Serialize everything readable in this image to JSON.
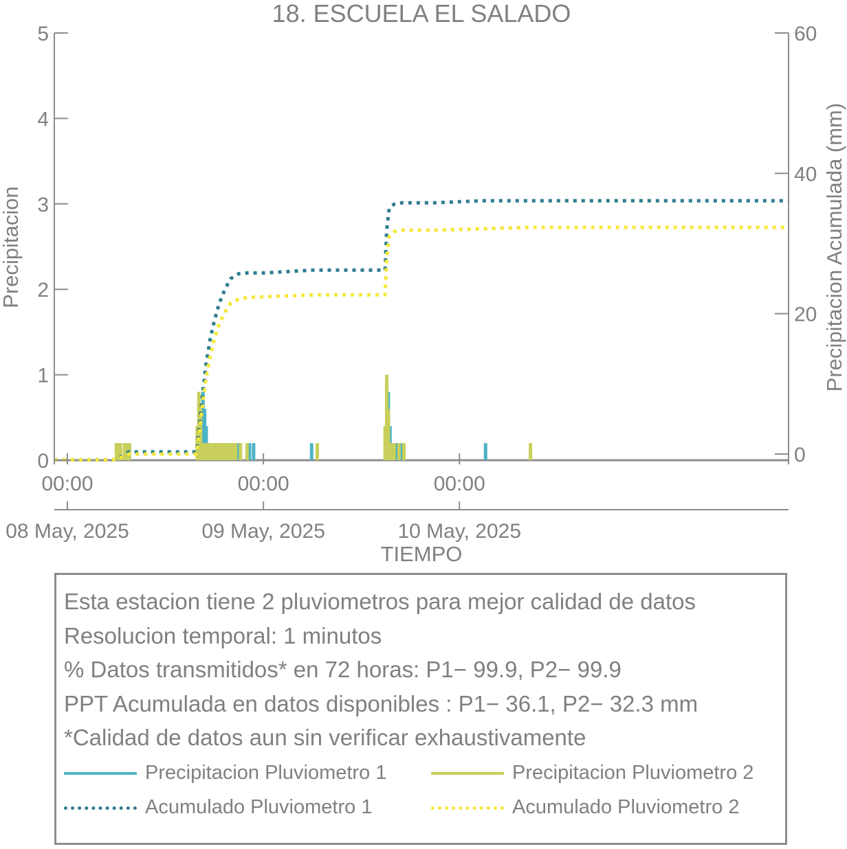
{
  "chart_data": {
    "type": "line",
    "title": "18. ESCUELA EL SALADO",
    "xlabel": "TIEMPO",
    "ylabel_left": "Precipitacion",
    "ylabel_right": "Precipitacion Acumulada (mm)",
    "ylim_left": [
      0,
      5
    ],
    "ylim_right": [
      0,
      60
    ],
    "yticks_left": [
      "0",
      "1",
      "2",
      "3",
      "4",
      "5"
    ],
    "yticks_right": [
      "0",
      "20",
      "40",
      "60"
    ],
    "x_range_hours": [
      -1.6,
      88.3
    ],
    "x_ticks": [
      {
        "time": "00:00",
        "date": "08 May, 2025",
        "hour": 0
      },
      {
        "time": "00:00",
        "date": "09 May, 2025",
        "hour": 24
      },
      {
        "time": "00:00",
        "date": "10 May, 2025",
        "hour": 48
      }
    ],
    "grid": false,
    "series": [
      {
        "name": "Precipitacion Pluviometro 1",
        "axis": "left",
        "style": "bars",
        "color": "#4db3c6",
        "x": [
          6.2,
          6.4,
          7.3,
          7.6,
          16.2,
          16.4,
          16.6,
          16.8,
          17.0,
          17.3,
          17.6,
          18.0,
          18.3,
          18.6,
          19.0,
          19.3,
          19.6,
          20.0,
          20.3,
          21.0,
          22.3,
          22.8,
          29.9,
          39.1,
          39.3,
          39.5,
          39.9,
          40.4,
          41.0,
          51.2
        ],
        "values": [
          0.2,
          0.2,
          0.2,
          0.2,
          0.4,
          0.6,
          0.8,
          0.6,
          0.4,
          0.2,
          0.2,
          0.2,
          0.2,
          0.2,
          0.2,
          0.2,
          0.2,
          0.2,
          0.2,
          0.2,
          0.2,
          0.2,
          0.2,
          0.6,
          0.8,
          0.4,
          0.2,
          0.2,
          0.2,
          0.2
        ]
      },
      {
        "name": "Precipitacion Pluviometro 2",
        "axis": "left",
        "style": "bars",
        "color": "#c8cf5a",
        "x": [
          6.0,
          6.2,
          6.5,
          7.0,
          7.3,
          7.6,
          15.9,
          16.1,
          16.3,
          16.6,
          16.9,
          17.2,
          17.5,
          17.8,
          18.1,
          18.4,
          18.7,
          19.0,
          19.3,
          19.6,
          19.9,
          20.3,
          20.6,
          21.2,
          22.0,
          30.6,
          38.9,
          39.1,
          39.3,
          39.6,
          40.0,
          40.6,
          41.2,
          56.7
        ],
        "values": [
          0.2,
          0.2,
          0.2,
          0.2,
          0.2,
          0.2,
          0.4,
          0.8,
          0.6,
          0.2,
          0.2,
          0.2,
          0.2,
          0.2,
          0.2,
          0.2,
          0.2,
          0.2,
          0.2,
          0.2,
          0.2,
          0.2,
          0.2,
          0.2,
          0.2,
          0.2,
          0.4,
          1.0,
          0.6,
          0.2,
          0.2,
          0.2,
          0.2,
          0.2
        ]
      },
      {
        "name": "Acumulado Pluviometro 1",
        "axis": "right",
        "style": "dotted",
        "color": "#2e7d8f",
        "x": [
          -1.6,
          6.0,
          7.5,
          15.8,
          16.2,
          16.6,
          17.0,
          17.5,
          18.0,
          18.6,
          19.3,
          20.0,
          21.0,
          22.0,
          24.0,
          30.0,
          38.9,
          39.1,
          39.4,
          40.0,
          41.0,
          45.0,
          51.0,
          88.3
        ],
        "values": [
          -0.8,
          -0.8,
          0.3,
          0.3,
          4.5,
          9.0,
          13.0,
          16.5,
          19.0,
          21.5,
          23.5,
          25.0,
          25.7,
          25.8,
          25.8,
          26.2,
          26.2,
          32.0,
          35.0,
          35.6,
          35.8,
          35.8,
          36.1,
          36.1
        ]
      },
      {
        "name": "Acumulado Pluviometro 2",
        "axis": "right",
        "style": "dotted",
        "color": "#f5e839",
        "x": [
          -1.6,
          6.0,
          7.5,
          15.8,
          16.2,
          16.6,
          17.0,
          17.5,
          18.0,
          18.6,
          19.3,
          20.0,
          21.0,
          22.0,
          24.0,
          30.5,
          38.9,
          39.1,
          39.4,
          40.0,
          41.0,
          45.0,
          56.7,
          88.3
        ],
        "values": [
          -0.8,
          -0.8,
          0.0,
          0.0,
          3.5,
          7.5,
          11.0,
          14.0,
          16.5,
          18.6,
          20.2,
          21.5,
          22.1,
          22.3,
          22.4,
          22.7,
          22.7,
          28.0,
          31.0,
          31.7,
          31.9,
          31.9,
          32.3,
          32.3
        ]
      }
    ]
  },
  "notes": [
    "Esta estacion tiene 2 pluviometros para mejor calidad de datos",
    "Resolucion temporal: 1 minutos",
    "% Datos transmitidos* en 72 horas: P1− 99.9, P2− 99.9",
    "PPT Acumulada en datos disponibles : P1− 36.1, P2− 32.3 mm",
    "*Calidad de datos aun sin verificar exhaustivamente"
  ],
  "legend": [
    {
      "label": "Precipitacion Pluviometro 1",
      "color": "#4db3c6",
      "style": "solid"
    },
    {
      "label": "Precipitacion Pluviometro 2",
      "color": "#c8cf5a",
      "style": "solid"
    },
    {
      "label": "Acumulado Pluviometro 1",
      "color": "#2e7d8f",
      "style": "dotted"
    },
    {
      "label": "Acumulado Pluviometro 2",
      "color": "#f5e839",
      "style": "dotted"
    }
  ]
}
